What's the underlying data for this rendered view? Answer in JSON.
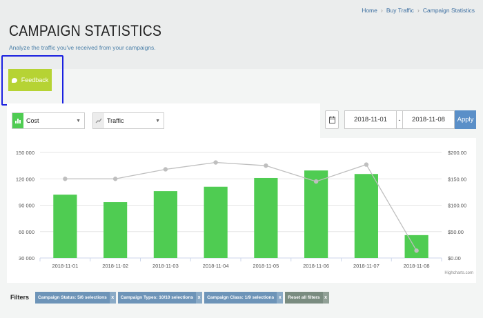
{
  "breadcrumb": {
    "items": [
      "Home",
      "Buy Traffic",
      "Campaign Statistics"
    ]
  },
  "page": {
    "title": "CAMPAIGN STATISTICS",
    "subtitle": "Analyze the traffic you've received from your campaigns."
  },
  "feedback": {
    "label": "Feedback"
  },
  "controls": {
    "metric_left": "Cost",
    "metric_right": "Traffic",
    "date_from": "2018-11-01",
    "date_sep": "-",
    "date_to": "2018-11-08",
    "apply_label": "Apply"
  },
  "credits": "Highcharts.com",
  "filters": {
    "label": "Filters",
    "chips": [
      "Campaign Status: 5/6 selections",
      "Campaign Types: 10/10 selections",
      "Campaign Class: 1/9 selections"
    ],
    "reset_label": "Reset all filters",
    "remove_glyph": "x"
  },
  "colors": {
    "bar": "#4fcc52",
    "line": "#bfbfbf",
    "accent": "#5a8fc8",
    "feedback": "#b6d334"
  },
  "chart_data": {
    "type": "bar",
    "categories": [
      "2018-11-01",
      "2018-11-02",
      "2018-11-03",
      "2018-11-04",
      "2018-11-05",
      "2018-11-06",
      "2018-11-07",
      "2018-11-08"
    ],
    "series": [
      {
        "type": "bar",
        "axis": "left",
        "values": [
          102000,
          93500,
          106000,
          111000,
          121000,
          129500,
          125500,
          56000
        ]
      },
      {
        "type": "line",
        "axis": "right",
        "values": [
          150,
          150,
          168,
          181,
          175,
          145,
          177,
          14
        ]
      }
    ],
    "y_left": {
      "min": 30000,
      "max": 150000,
      "ticks": [
        "30 000",
        "60 000",
        "90 000",
        "120 000",
        "150 000"
      ]
    },
    "y_right": {
      "min": 0,
      "max": 200,
      "ticks": [
        "$0.00",
        "$50.00",
        "$100.00",
        "$150.00",
        "$200.00"
      ]
    },
    "grid": true
  }
}
